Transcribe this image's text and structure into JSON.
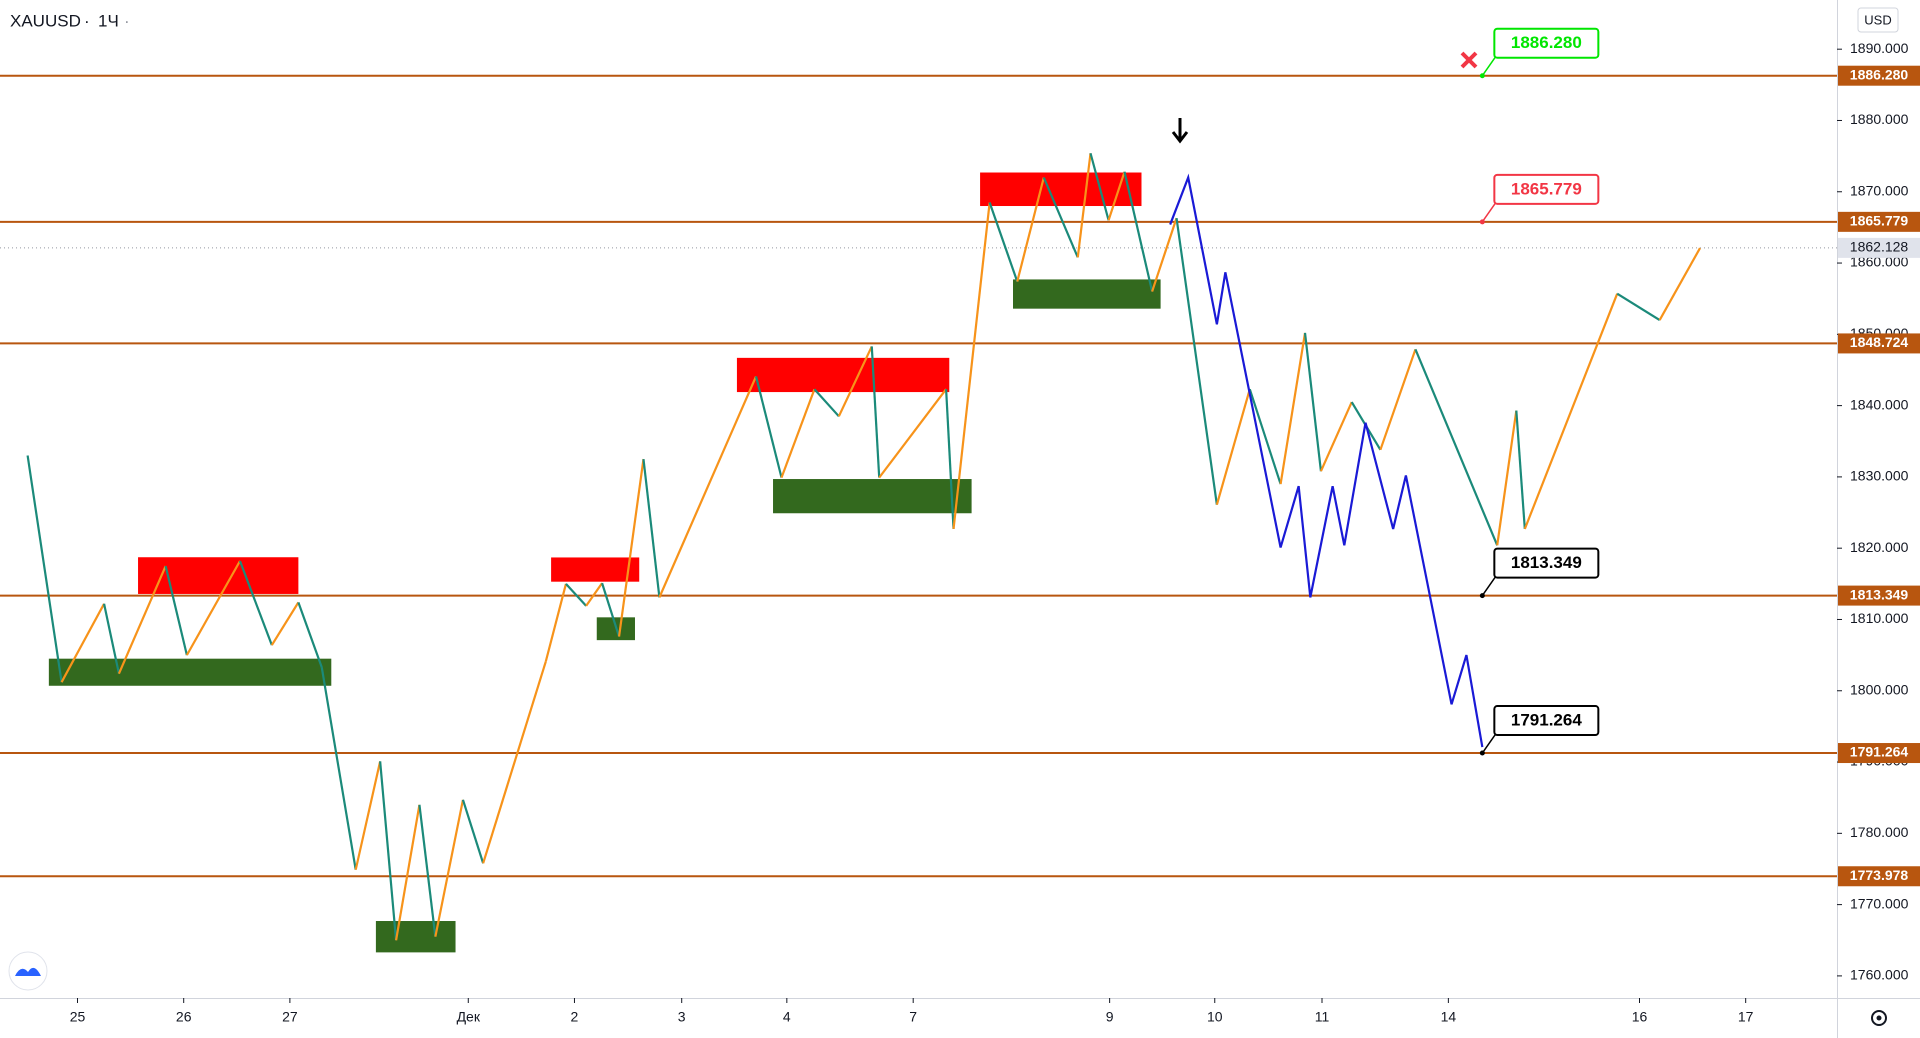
{
  "header": {
    "symbol": "XAUUSD",
    "interval": "1Ч",
    "currency": "USD"
  },
  "chart_data": {
    "type": "line",
    "xlim": [
      -0.73,
      16.57
    ],
    "ylim": [
      1756.9,
      1896.9
    ],
    "xticks": [
      {
        "value": 0,
        "label": "25"
      },
      {
        "value": 1,
        "label": "26"
      },
      {
        "value": 2,
        "label": "27"
      },
      {
        "value": 3.68,
        "label": "Дек"
      },
      {
        "value": 4.68,
        "label": "2"
      },
      {
        "value": 5.69,
        "label": "3"
      },
      {
        "value": 6.68,
        "label": "4"
      },
      {
        "value": 7.87,
        "label": "7"
      },
      {
        "value": 9.72,
        "label": "9"
      },
      {
        "value": 10.71,
        "label": "10"
      },
      {
        "value": 11.72,
        "label": "11"
      },
      {
        "value": 12.91,
        "label": "14"
      },
      {
        "value": 14.71,
        "label": "16"
      },
      {
        "value": 15.71,
        "label": "17"
      }
    ],
    "yticks": [
      {
        "value": 1760,
        "label": "1760.000"
      },
      {
        "value": 1770,
        "label": "1770.000"
      },
      {
        "value": 1780,
        "label": "1780.000"
      },
      {
        "value": 1790,
        "label": "1790.000"
      },
      {
        "value": 1800,
        "label": "1800.000"
      },
      {
        "value": 1810,
        "label": "1810.000"
      },
      {
        "value": 1820,
        "label": "1820.000"
      },
      {
        "value": 1830,
        "label": "1830.000"
      },
      {
        "value": 1840,
        "label": "1840.000"
      },
      {
        "value": 1850,
        "label": "1850.000"
      },
      {
        "value": 1860,
        "label": "1860.000"
      },
      {
        "value": 1870,
        "label": "1870.000"
      },
      {
        "value": 1880,
        "label": "1880.000"
      },
      {
        "value": 1890,
        "label": "1890.000"
      }
    ],
    "levels": {
      "values": [
        1886.28,
        1865.779,
        1848.724,
        1813.349,
        1791.264,
        1773.978
      ],
      "value_labels": [
        "1886.280",
        "1865.779",
        "1848.724",
        "1813.349",
        "1791.264",
        "1773.978"
      ],
      "color": "#b8560f"
    },
    "last_price": {
      "value": 1862.128,
      "label": "1862.128",
      "color": "#9598a1"
    },
    "callouts": [
      {
        "x": 13.23,
        "value": 1886.28,
        "label": "1886.280",
        "color": "#00e600"
      },
      {
        "x": 13.23,
        "value": 1865.779,
        "label": "1865.779",
        "color": "#f23645"
      },
      {
        "x": 13.23,
        "value": 1813.349,
        "label": "1813.349",
        "color": "#000000"
      },
      {
        "x": 13.23,
        "value": 1791.264,
        "label": "1791.264",
        "color": "#000000"
      }
    ],
    "zones": [
      {
        "color": "#ff0000",
        "x": [
          0.57,
          2.08
        ],
        "y": [
          1813.58,
          1818.73
        ]
      },
      {
        "color": "#ff0000",
        "x": [
          4.46,
          5.29
        ],
        "y": [
          1815.3,
          1818.7
        ]
      },
      {
        "color": "#ff0000",
        "x": [
          6.21,
          8.21
        ],
        "y": [
          1841.9,
          1846.7
        ]
      },
      {
        "color": "#ff0000",
        "x": [
          8.5,
          10.02
        ],
        "y": [
          1868.0,
          1872.7
        ]
      },
      {
        "color": "#33691e",
        "x": [
          -0.27,
          2.39
        ],
        "y": [
          1800.7,
          1804.5
        ]
      },
      {
        "color": "#33691e",
        "x": [
          2.81,
          3.56
        ],
        "y": [
          1763.3,
          1767.7
        ]
      },
      {
        "color": "#33691e",
        "x": [
          4.89,
          5.25
        ],
        "y": [
          1807.1,
          1810.3
        ]
      },
      {
        "color": "#33691e",
        "x": [
          6.55,
          8.42
        ],
        "y": [
          1824.9,
          1829.7
        ]
      },
      {
        "color": "#33691e",
        "x": [
          8.81,
          10.2
        ],
        "y": [
          1853.6,
          1857.7
        ]
      }
    ],
    "zigzag": {
      "up_color": "#f7931a",
      "down_color": "#1b8a7a",
      "x": [
        -0.47,
        -0.15,
        0.25,
        0.39,
        0.83,
        1.03,
        1.53,
        1.83,
        2.08,
        2.3,
        2.62,
        2.85,
        3.0,
        3.22,
        3.37,
        3.63,
        3.82,
        4.41,
        4.6,
        4.79,
        4.94,
        5.1,
        5.33,
        5.48,
        6.39,
        6.63,
        6.94,
        7.17,
        7.48,
        7.55,
        8.18,
        8.25,
        8.59,
        8.85,
        9.1,
        9.42,
        9.54,
        9.71,
        9.86,
        10.12,
        10.35,
        10.73,
        11.04,
        11.33,
        11.56,
        11.71,
        12.0,
        12.27,
        12.6,
        13.37,
        13.55,
        13.63,
        14.5,
        14.9,
        15.28
      ],
      "values": [
        1833.0,
        1801.2,
        1812.2,
        1802.4,
        1817.5,
        1805.0,
        1818.2,
        1806.4,
        1812.4,
        1803.3,
        1774.9,
        1790.1,
        1765.0,
        1784.0,
        1765.5,
        1784.7,
        1775.8,
        1804.1,
        1815.0,
        1811.9,
        1815.1,
        1807.6,
        1832.5,
        1813.1,
        1844.1,
        1829.9,
        1842.3,
        1838.5,
        1848.3,
        1829.9,
        1842.3,
        1822.7,
        1868.5,
        1857.4,
        1872.0,
        1860.8,
        1875.4,
        1866.0,
        1872.8,
        1856.0,
        1866.3,
        1826.1,
        1842.3,
        1829.0,
        1850.2,
        1830.8,
        1840.5,
        1833.8,
        1847.9,
        1820.4,
        1839.3,
        1822.7,
        1855.7,
        1852.0,
        1862.1
      ]
    },
    "projection": {
      "color": "#1a1ad6",
      "x": [
        10.29,
        10.46,
        10.73,
        10.81,
        11.33,
        11.5,
        11.61,
        11.82,
        11.93,
        12.13,
        12.39,
        12.51,
        12.94,
        13.08,
        13.23
      ],
      "values": [
        1865.4,
        1872.0,
        1851.4,
        1858.7,
        1820.1,
        1828.7,
        1813.1,
        1828.7,
        1820.4,
        1837.6,
        1822.7,
        1830.2,
        1798.1,
        1805.0,
        1792.1
      ]
    }
  }
}
